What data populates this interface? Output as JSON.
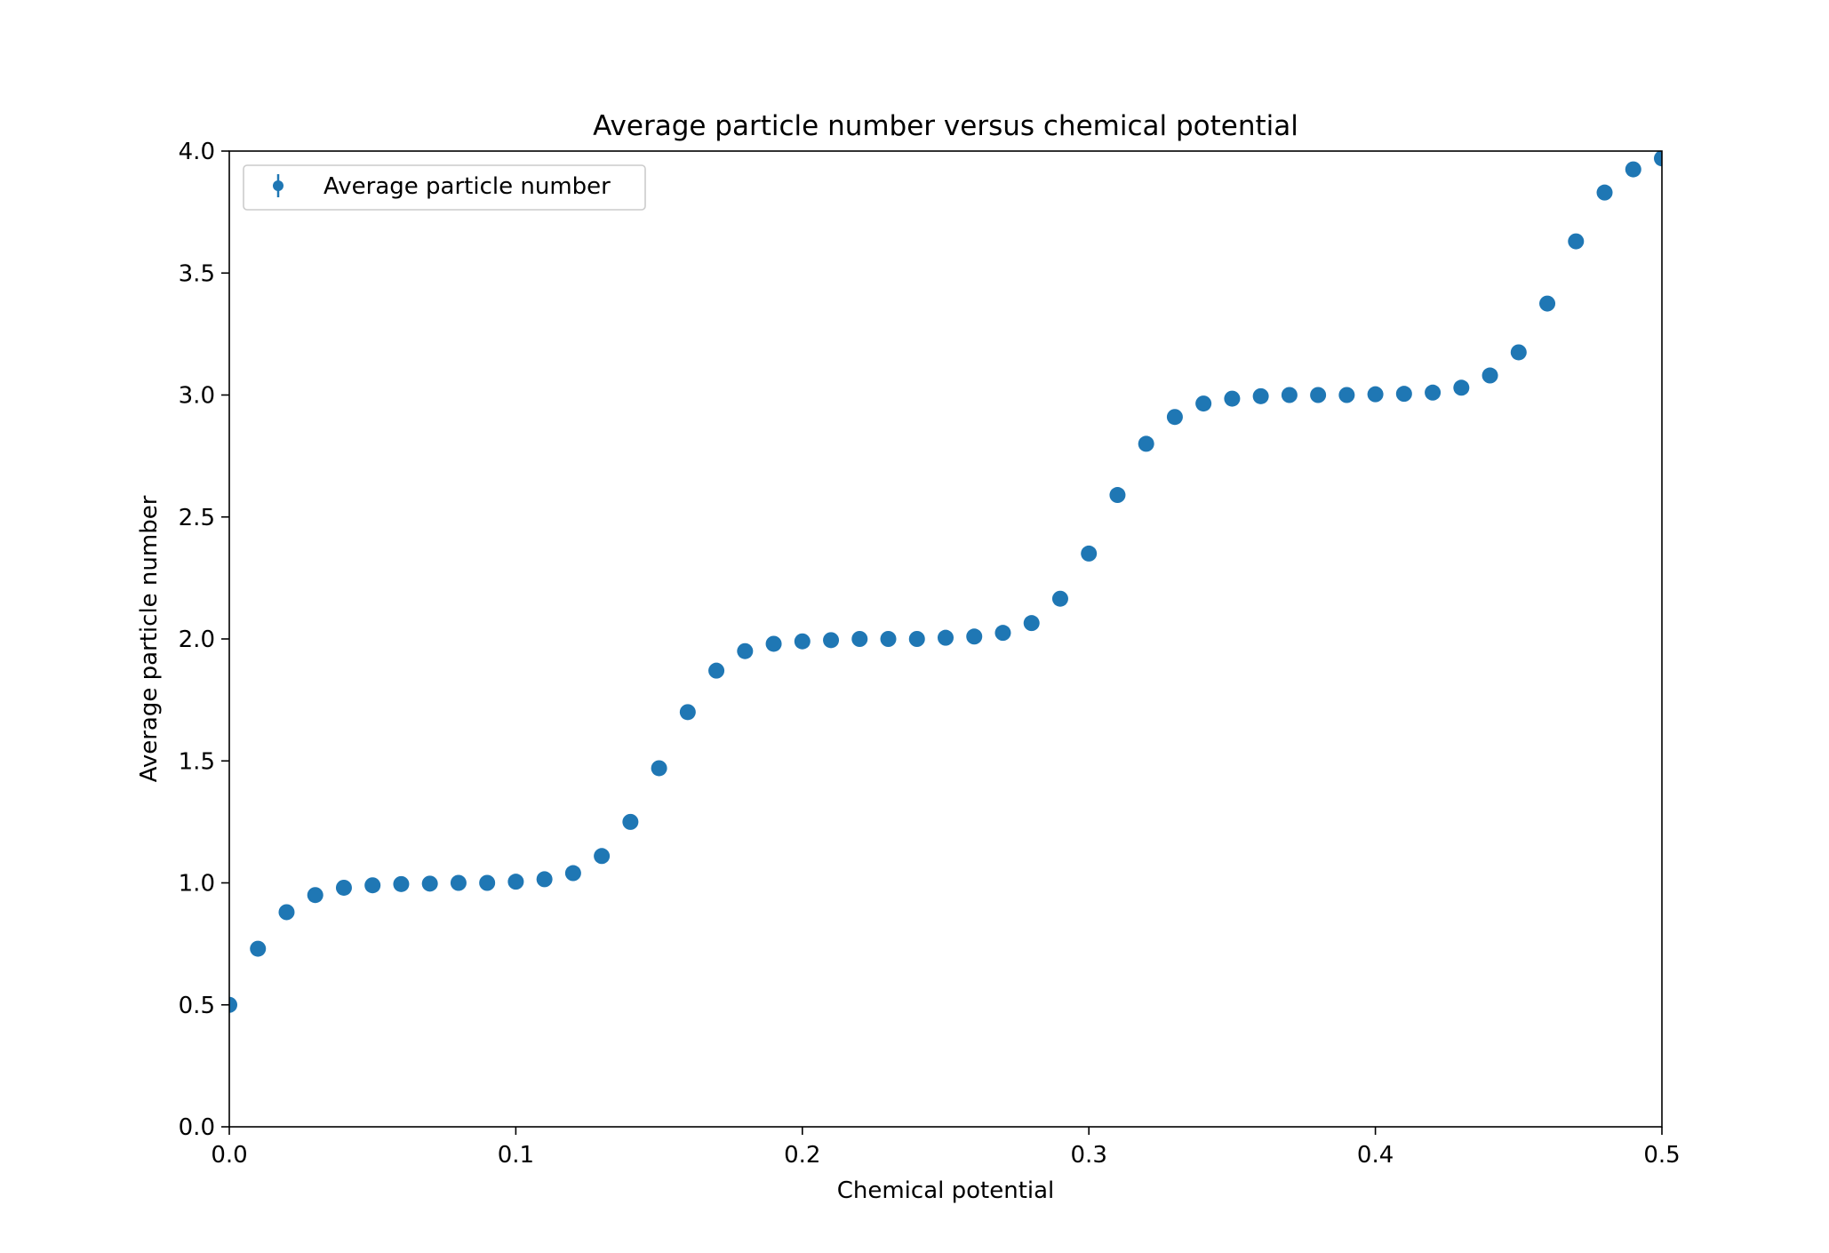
{
  "chart_data": {
    "type": "scatter",
    "title": "Average particle number versus chemical potential",
    "xlabel": "Chemical potential",
    "ylabel": "Average particle number",
    "xlim": [
      0.0,
      0.5
    ],
    "ylim": [
      0.0,
      4.0
    ],
    "xticks": [
      "0.0",
      "0.1",
      "0.2",
      "0.3",
      "0.4",
      "0.5"
    ],
    "yticks": [
      "0.0",
      "0.5",
      "1.0",
      "1.5",
      "2.0",
      "2.5",
      "3.0",
      "3.5",
      "4.0"
    ],
    "grid": false,
    "legend_position": "upper-left",
    "marker_color": "#1f77b4",
    "series": [
      {
        "name": "Average particle number",
        "x": [
          0.0,
          0.01,
          0.02,
          0.03,
          0.04,
          0.05,
          0.06,
          0.07,
          0.08,
          0.09,
          0.1,
          0.11,
          0.12,
          0.13,
          0.14,
          0.15,
          0.16,
          0.17,
          0.18,
          0.19,
          0.2,
          0.21,
          0.22,
          0.23,
          0.24,
          0.25,
          0.26,
          0.27,
          0.28,
          0.29,
          0.3,
          0.31,
          0.32,
          0.33,
          0.34,
          0.35,
          0.36,
          0.37,
          0.38,
          0.39,
          0.4,
          0.41,
          0.42,
          0.43,
          0.44,
          0.45,
          0.46,
          0.47,
          0.48,
          0.49,
          0.5
        ],
        "y": [
          0.5,
          0.73,
          0.88,
          0.95,
          0.98,
          0.99,
          0.995,
          0.997,
          1.0,
          1.0,
          1.005,
          1.015,
          1.04,
          1.11,
          1.25,
          1.47,
          1.7,
          1.87,
          1.95,
          1.98,
          1.99,
          1.995,
          2.0,
          2.0,
          2.0,
          2.005,
          2.01,
          2.025,
          2.065,
          2.165,
          2.35,
          2.59,
          2.8,
          2.91,
          2.965,
          2.985,
          2.995,
          3.0,
          3.0,
          3.0,
          3.003,
          3.005,
          3.01,
          3.03,
          3.08,
          3.175,
          3.375,
          3.63,
          3.83,
          3.925,
          3.97
        ]
      }
    ]
  }
}
